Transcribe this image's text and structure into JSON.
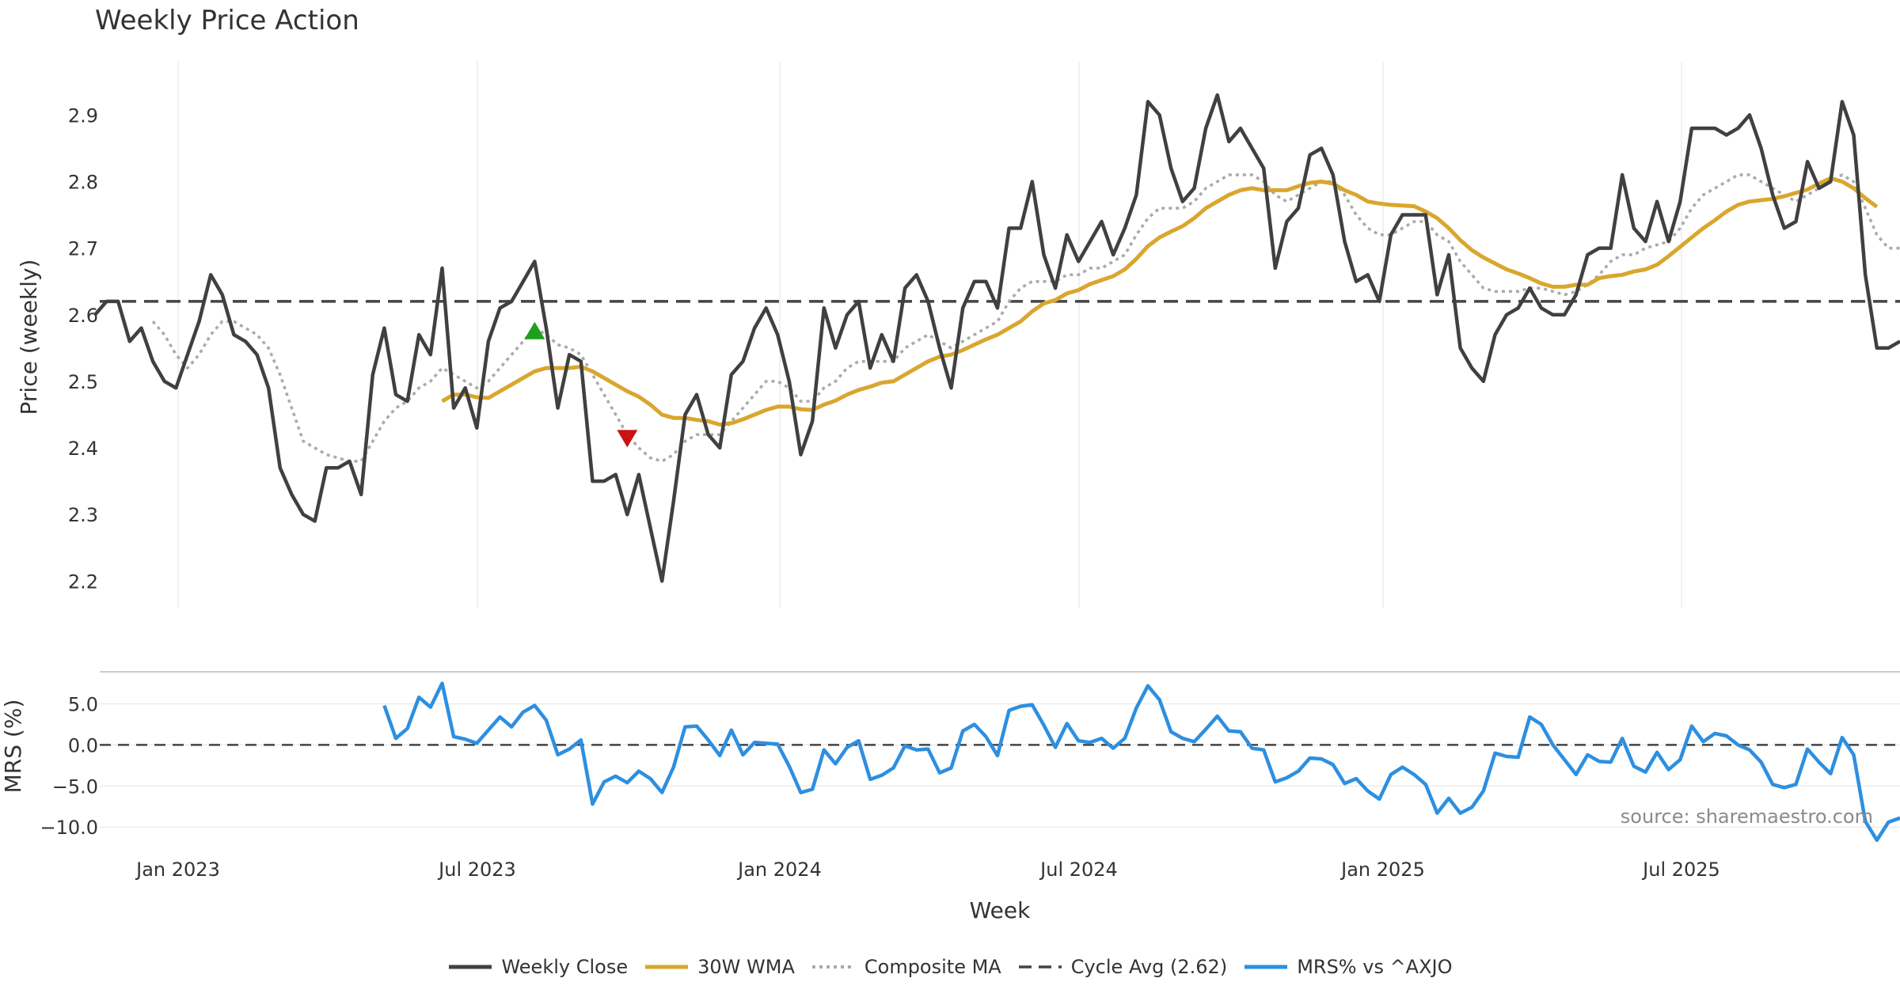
{
  "chart_data": [
    {
      "type": "line",
      "title": "Weekly Price Action",
      "ylabel": "Price (weekly)",
      "ylim": [
        2.16,
        2.98
      ],
      "yticks": [
        "2.2",
        "2.3",
        "2.4",
        "2.5",
        "2.6",
        "2.7",
        "2.8",
        "2.9"
      ],
      "xticks": [
        "Jan 2023",
        "Jul 2023",
        "Jan 2024",
        "Jul 2024",
        "Jan 2025",
        "Jul 2025"
      ],
      "grid": true,
      "weekly_close": [
        2.6,
        2.62,
        2.62,
        2.56,
        2.58,
        2.53,
        2.5,
        2.49,
        2.54,
        2.59,
        2.66,
        2.63,
        2.57,
        2.56,
        2.54,
        2.49,
        2.37,
        2.33,
        2.3,
        2.29,
        2.37,
        2.37,
        2.38,
        2.33,
        2.51,
        2.58,
        2.48,
        2.47,
        2.57,
        2.54,
        2.67,
        2.46,
        2.49,
        2.43,
        2.56,
        2.61,
        2.62,
        2.65,
        2.68,
        2.58,
        2.46,
        2.54,
        2.53,
        2.35,
        2.35,
        2.36,
        2.3,
        2.36,
        2.28,
        2.2,
        2.32,
        2.45,
        2.48,
        2.42,
        2.4,
        2.51,
        2.53,
        2.58,
        2.61,
        2.57,
        2.5,
        2.39,
        2.44,
        2.61,
        2.55,
        2.6,
        2.62,
        2.52,
        2.57,
        2.53,
        2.64,
        2.66,
        2.62,
        2.55,
        2.49,
        2.61,
        2.65,
        2.65,
        2.61,
        2.73,
        2.73,
        2.8,
        2.69,
        2.64,
        2.72,
        2.68,
        2.71,
        2.74,
        2.69,
        2.73,
        2.78,
        2.92,
        2.9,
        2.82,
        2.77,
        2.79,
        2.88,
        2.93,
        2.86,
        2.88,
        2.85,
        2.82,
        2.67,
        2.74,
        2.76,
        2.84,
        2.85,
        2.81,
        2.71,
        2.65,
        2.66,
        2.62,
        2.72,
        2.75,
        2.75,
        2.75,
        2.63,
        2.69,
        2.55,
        2.52,
        2.5,
        2.57,
        2.6,
        2.61,
        2.64,
        2.61,
        2.6,
        2.6,
        2.63,
        2.69,
        2.7,
        2.7,
        2.81,
        2.73,
        2.71,
        2.77,
        2.71,
        2.77,
        2.88,
        2.88,
        2.88,
        2.87,
        2.88,
        2.9,
        2.85,
        2.78,
        2.73,
        2.74,
        2.83,
        2.79,
        2.8,
        2.92,
        2.87,
        2.66,
        2.55,
        2.55,
        2.56
      ],
      "wma30": [
        null,
        null,
        null,
        null,
        null,
        null,
        null,
        null,
        null,
        null,
        null,
        null,
        null,
        null,
        null,
        null,
        null,
        null,
        null,
        null,
        null,
        null,
        null,
        null,
        null,
        null,
        null,
        null,
        null,
        null,
        2.47,
        2.48,
        2.48,
        2.476,
        2.475,
        2.485,
        2.495,
        2.505,
        2.515,
        2.52,
        2.52,
        2.52,
        2.522,
        2.515,
        2.505,
        2.495,
        2.485,
        2.477,
        2.465,
        2.45,
        2.445,
        2.445,
        2.442,
        2.44,
        2.435,
        2.437,
        2.443,
        2.45,
        2.457,
        2.462,
        2.462,
        2.458,
        2.457,
        2.465,
        2.471,
        2.48,
        2.487,
        2.492,
        2.498,
        2.5,
        2.51,
        2.52,
        2.53,
        2.537,
        2.54,
        2.547,
        2.555,
        2.563,
        2.57,
        2.58,
        2.59,
        2.605,
        2.617,
        2.622,
        2.632,
        2.637,
        2.646,
        2.652,
        2.658,
        2.668,
        2.684,
        2.703,
        2.716,
        2.725,
        2.733,
        2.745,
        2.76,
        2.77,
        2.78,
        2.787,
        2.79,
        2.787,
        2.787,
        2.787,
        2.793,
        2.798,
        2.8,
        2.797,
        2.787,
        2.78,
        2.77,
        2.767,
        2.765,
        2.764,
        2.763,
        2.755,
        2.745,
        2.73,
        2.712,
        2.697,
        2.686,
        2.677,
        2.668,
        2.662,
        2.655,
        2.647,
        2.642,
        2.642,
        2.645,
        2.645,
        2.655,
        2.658,
        2.66,
        2.665,
        2.668,
        2.675,
        2.688,
        2.702,
        2.716,
        2.73,
        2.742,
        2.755,
        2.765,
        2.77,
        2.772,
        2.774,
        2.778,
        2.783,
        2.788,
        2.797,
        2.805,
        2.8,
        2.79,
        2.775,
        2.762
      ],
      "composite_ma": [
        null,
        null,
        null,
        null,
        null,
        2.59,
        2.57,
        2.54,
        2.52,
        2.54,
        2.57,
        2.59,
        2.59,
        2.58,
        2.57,
        2.55,
        2.51,
        2.46,
        2.41,
        2.4,
        2.39,
        2.385,
        2.38,
        2.38,
        2.41,
        2.44,
        2.46,
        2.47,
        2.49,
        2.5,
        2.52,
        2.51,
        2.5,
        2.49,
        2.5,
        2.52,
        2.54,
        2.56,
        2.58,
        2.57,
        2.555,
        2.55,
        2.54,
        2.51,
        2.48,
        2.45,
        2.42,
        2.4,
        2.385,
        2.38,
        2.39,
        2.41,
        2.42,
        2.42,
        2.42,
        2.44,
        2.46,
        2.48,
        2.5,
        2.5,
        2.49,
        2.47,
        2.47,
        2.49,
        2.5,
        2.52,
        2.53,
        2.53,
        2.53,
        2.53,
        2.55,
        2.56,
        2.57,
        2.56,
        2.55,
        2.56,
        2.57,
        2.58,
        2.59,
        2.62,
        2.64,
        2.65,
        2.65,
        2.65,
        2.66,
        2.66,
        2.67,
        2.67,
        2.68,
        2.69,
        2.72,
        2.745,
        2.76,
        2.76,
        2.76,
        2.77,
        2.79,
        2.8,
        2.81,
        2.81,
        2.81,
        2.8,
        2.78,
        2.77,
        2.78,
        2.79,
        2.8,
        2.8,
        2.78,
        2.75,
        2.73,
        2.72,
        2.72,
        2.73,
        2.74,
        2.74,
        2.72,
        2.71,
        2.68,
        2.66,
        2.64,
        2.635,
        2.635,
        2.635,
        2.64,
        2.64,
        2.635,
        2.63,
        2.635,
        2.645,
        2.66,
        2.68,
        2.69,
        2.69,
        2.7,
        2.705,
        2.71,
        2.73,
        2.76,
        2.78,
        2.79,
        2.8,
        2.81,
        2.81,
        2.8,
        2.79,
        2.78,
        2.77,
        2.78,
        2.79,
        2.8,
        2.81,
        2.8,
        2.76,
        2.72,
        2.7,
        2.7
      ],
      "cycle_avg": 2.62,
      "signals": [
        {
          "type": "buy",
          "week": 38,
          "price": 2.575
        },
        {
          "type": "sell",
          "week": 46,
          "price": 2.415
        }
      ]
    },
    {
      "type": "line",
      "ylabel": "MRS (%)",
      "xlabel": "Week",
      "ylim": [
        -12,
        9
      ],
      "yticks": [
        "5.0",
        "0.0",
        "−5.0",
        "−10.0"
      ],
      "zero_line": true,
      "mrs": [
        null,
        null,
        null,
        null,
        null,
        null,
        null,
        null,
        null,
        null,
        null,
        null,
        null,
        null,
        null,
        null,
        null,
        null,
        null,
        null,
        null,
        null,
        null,
        null,
        null,
        4.8,
        0.8,
        2.0,
        5.8,
        4.6,
        7.5,
        1.0,
        0.7,
        0.2,
        1.8,
        3.4,
        2.2,
        4.0,
        4.8,
        3.0,
        -1.2,
        -0.5,
        0.6,
        -7.2,
        -4.5,
        -3.8,
        -4.6,
        -3.2,
        -4.1,
        -5.8,
        -2.7,
        2.2,
        2.3,
        0.6,
        -1.3,
        1.8,
        -1.2,
        0.3,
        0.2,
        0.1,
        -2.6,
        -5.8,
        -5.4,
        -0.6,
        -2.3,
        -0.3,
        0.5,
        -4.2,
        -3.7,
        -2.8,
        -0.1,
        -0.6,
        -0.5,
        -3.4,
        -2.8,
        1.7,
        2.5,
        1.0,
        -1.3,
        4.2,
        4.7,
        4.9,
        2.4,
        -0.3,
        2.6,
        0.5,
        0.3,
        0.8,
        -0.4,
        0.8,
        4.5,
        7.2,
        5.5,
        1.6,
        0.8,
        0.4,
        1.9,
        3.5,
        1.7,
        1.6,
        -0.4,
        -0.6,
        -4.5,
        -4.0,
        -3.2,
        -1.6,
        -1.7,
        -2.4,
        -4.7,
        -4.1,
        -5.6,
        -6.6,
        -3.6,
        -2.7,
        -3.6,
        -4.8,
        -8.3,
        -6.5,
        -8.3,
        -7.6,
        -5.6,
        -1.0,
        -1.4,
        -1.5,
        3.4,
        2.5,
        0.0,
        -1.8,
        -3.6,
        -1.2,
        -2.0,
        -2.1,
        0.8,
        -2.6,
        -3.3,
        -0.9,
        -3.0,
        -1.8,
        2.3,
        0.4,
        1.4,
        1.1,
        0.0,
        -0.6,
        -2.1,
        -4.8,
        -5.2,
        -4.8,
        -0.5,
        -2.1,
        -3.5,
        0.9,
        -1.2,
        -9.3,
        -11.6,
        -9.4,
        -8.9
      ]
    }
  ],
  "legend": [
    {
      "label": "Weekly Close",
      "color": "#404040",
      "style": "solid"
    },
    {
      "label": "30W WMA",
      "color": "#d9a62e",
      "style": "solid"
    },
    {
      "label": "Composite MA",
      "color": "#aaaaaa",
      "style": "dotted"
    },
    {
      "label": "Cycle Avg (2.62)",
      "color": "#444444",
      "style": "dashed"
    },
    {
      "label": "MRS% vs ^AXJO",
      "color": "#2d8fe0",
      "style": "solid"
    }
  ],
  "source": "source: sharemaestro.com"
}
